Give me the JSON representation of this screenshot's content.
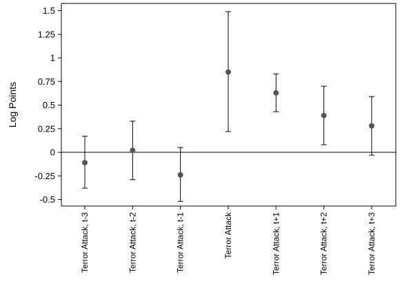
{
  "chart_data": {
    "type": "scatter",
    "subtype": "point-with-error-bars",
    "title": "",
    "xlabel": "",
    "ylabel": "Log Points",
    "ylim": [
      -0.6,
      1.55
    ],
    "yticks": [
      1.5,
      1.25,
      1,
      0.75,
      0.5,
      0.25,
      0,
      -0.25,
      -0.5
    ],
    "ytick_labels": [
      "1.5",
      "1.25",
      "1",
      "0.75",
      "0.5",
      "0.25",
      "0",
      "-0.25",
      "-0.5"
    ],
    "reference_line": 0,
    "grid": false,
    "categories": [
      "Terror Attack, t-3",
      "Terror Attack, t-2",
      "Terror Attack, t-1",
      "Terror Attack",
      "Terror Attack, t+1",
      "Terror Attack, t+2",
      "Terror Attack, t+3"
    ],
    "values": [
      -0.11,
      0.02,
      -0.24,
      0.85,
      0.63,
      0.39,
      0.28
    ],
    "lower": [
      -0.38,
      -0.29,
      -0.52,
      0.22,
      0.43,
      0.08,
      -0.03
    ],
    "upper": [
      0.17,
      0.33,
      0.05,
      1.49,
      0.83,
      0.7,
      0.59
    ],
    "marker_color": "#555555",
    "line_color": "#000000"
  }
}
